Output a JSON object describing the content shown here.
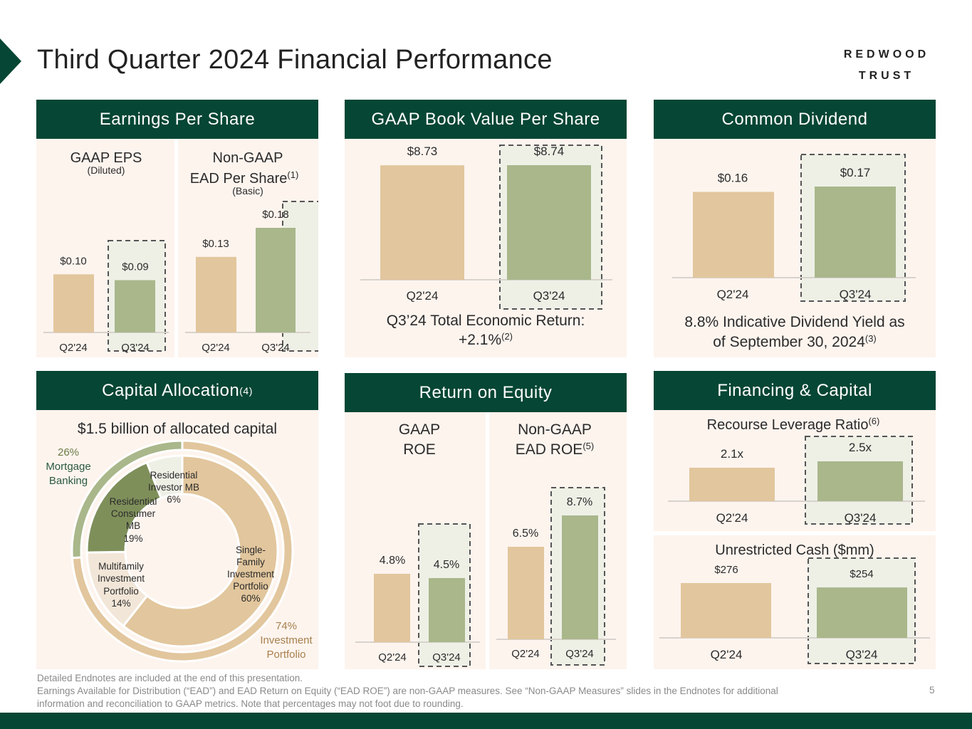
{
  "page": {
    "title": "Third Quarter 2024 Financial Performance",
    "logo_line1": "REDWOOD",
    "logo_line2": "TRUST",
    "page_number": "5",
    "footnote_line1": "Detailed Endnotes are included at the end of this presentation.",
    "footnote_line2": "Earnings Available for Distribution (“EAD”) and EAD Return on Equity (“EAD ROE”) are non-GAAP measures. See “Non-GAAP Measures” slides in the Endnotes for additional",
    "footnote_line3": "information and reconciliation to GAAP metrics. Note that percentages may not foot due to rounding."
  },
  "colors": {
    "dark_green": "#064634",
    "prior_bar": "#e2c69d",
    "current_bar": "#a9b78b",
    "panel_bg": "#fdf4ee",
    "dashed_box_bg": "#eef0e6"
  },
  "panels": {
    "eps": {
      "header": "Earnings Per Share"
    },
    "bvps": {
      "header": "GAAP Book Value Per Share",
      "caption_line1": "Q3’24 Total Economic Return:",
      "caption_line2": "+2.1%",
      "caption_sup": "(2)"
    },
    "dividend": {
      "header": "Common Dividend",
      "caption_line1": "8.8% Indicative Dividend Yield as",
      "caption_line2": "of September 30, 2024",
      "caption_sup": "(3)"
    },
    "capital": {
      "header": "Capital Allocation",
      "header_sup": "(4)",
      "subtitle": "$1.5 billion of allocated capital"
    },
    "roe": {
      "header": "Return on Equity"
    },
    "financing": {
      "header": "Financing & Capital"
    }
  },
  "chart_data": [
    {
      "id": "gaap_eps",
      "type": "bar",
      "title": "GAAP EPS",
      "subtitle": "(Diluted)",
      "categories": [
        "Q2'24",
        "Q3'24"
      ],
      "values": [
        0.1,
        0.09
      ],
      "labels": [
        "$0.10",
        "$0.09"
      ],
      "ylim": [
        0,
        0.18
      ]
    },
    {
      "id": "ead_per_share",
      "type": "bar",
      "title_line1": "Non-GAAP",
      "title_line2": "EAD Per Share",
      "title_sup": "(1)",
      "subtitle": "(Basic)",
      "categories": [
        "Q2'24",
        "Q3'24"
      ],
      "values": [
        0.13,
        0.18
      ],
      "labels": [
        "$0.13",
        "$0.18"
      ],
      "ylim": [
        0,
        0.18
      ]
    },
    {
      "id": "bvps",
      "type": "bar",
      "title": "GAAP Book Value Per Share",
      "categories": [
        "Q2'24",
        "Q3'24"
      ],
      "values": [
        8.73,
        8.74
      ],
      "labels": [
        "$8.73",
        "$8.74"
      ],
      "ylim": [
        0,
        8.74
      ]
    },
    {
      "id": "dividend",
      "type": "bar",
      "title": "Common Dividend",
      "categories": [
        "Q2'24",
        "Q3'24"
      ],
      "values": [
        0.16,
        0.17
      ],
      "labels": [
        "$0.16",
        "$0.17"
      ],
      "ylim": [
        0,
        0.17
      ]
    },
    {
      "id": "capital_allocation",
      "type": "pie",
      "title": "$1.5 billion of allocated capital",
      "inner": [
        {
          "label_lines": [
            "Single-",
            "Family",
            "Investment",
            "Portfolio",
            "60%"
          ],
          "value": 60,
          "color": "#e2c69d"
        },
        {
          "label_lines": [
            "Multifamily",
            "Investment",
            "Portfolio",
            "14%"
          ],
          "value": 14,
          "color": "#f2e6d8"
        },
        {
          "label_lines": [
            "Residential",
            "Consumer",
            "MB",
            "19%"
          ],
          "value": 19,
          "color": "#7f8f5a"
        },
        {
          "label_lines": [
            "Residential",
            "Investor MB",
            "6%"
          ],
          "value": 6,
          "color": "#eef0e6"
        }
      ],
      "outer": [
        {
          "label_lines": [
            "74%",
            "Investment",
            "Portfolio"
          ],
          "value": 74,
          "color": "#e2c69d"
        },
        {
          "label_lines": [
            "26%",
            "Mortgage",
            "Banking"
          ],
          "value": 26,
          "color": "#a9b78b"
        }
      ]
    },
    {
      "id": "gaap_roe",
      "type": "bar",
      "title_line1": "GAAP",
      "title_line2": "ROE",
      "categories": [
        "Q2'24",
        "Q3'24"
      ],
      "values": [
        4.8,
        4.5
      ],
      "labels": [
        "4.8%",
        "4.5%"
      ],
      "ylim": [
        0,
        8.7
      ]
    },
    {
      "id": "ead_roe",
      "type": "bar",
      "title_line1": "Non-GAAP",
      "title_line2": "EAD ROE",
      "title_sup": "(5)",
      "categories": [
        "Q2'24",
        "Q3'24"
      ],
      "values": [
        6.5,
        8.7
      ],
      "labels": [
        "6.5%",
        "8.7%"
      ],
      "ylim": [
        0,
        8.7
      ]
    },
    {
      "id": "recourse_leverage",
      "type": "bar",
      "title": "Recourse Leverage Ratio",
      "title_sup": "(6)",
      "categories": [
        "Q2'24",
        "Q3'24"
      ],
      "values": [
        2.1,
        2.5
      ],
      "labels": [
        "2.1x",
        "2.5x"
      ],
      "ylim": [
        0,
        2.5
      ]
    },
    {
      "id": "unrestricted_cash",
      "type": "bar",
      "title": "Unrestricted Cash ($mm)",
      "categories": [
        "Q2'24",
        "Q3'24"
      ],
      "values": [
        276,
        254
      ],
      "labels": [
        "$276",
        "$254"
      ],
      "ylim": [
        0,
        276
      ]
    }
  ]
}
